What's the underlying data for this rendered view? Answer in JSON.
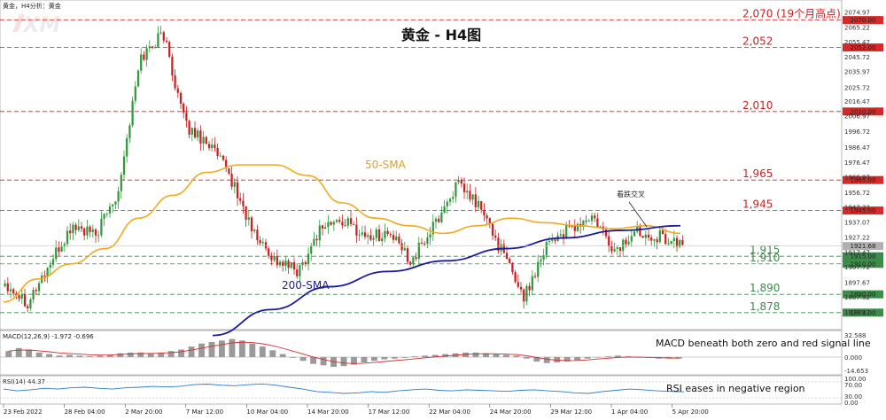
{
  "header": {
    "label": "黄金，H4分析：黄金"
  },
  "logo": {
    "text": "XM"
  },
  "chart_data": {
    "type": "candlestick",
    "title": "黄金 - H4图",
    "ylim": [
      1868,
      2082
    ],
    "x_ticks": [
      "23 Feb 2022",
      "28 Feb 04:00",
      "2 Mar 20:00",
      "7 Mar 12:00",
      "10 Mar 04:00",
      "14 Mar 20:00",
      "17 Mar 12:00",
      "22 Mar 04:00",
      "24 Mar 20:00",
      "29 Mar 12:00",
      "1 Apr 04:00",
      "5 Apr 20:00"
    ],
    "price_ticks": [
      "2074.97",
      "2065.22",
      "2055.47",
      "2045.72",
      "2035.97",
      "2025.72",
      "2016.47",
      "2006.97",
      "1996.72",
      "1986.47",
      "1976.47",
      "1966.97",
      "1956.72",
      "1947.22",
      "1937.07",
      "1927.22",
      "1917.47",
      "1907.72",
      "1897.67",
      "1887.92",
      "1878.17"
    ],
    "levels": [
      {
        "value": 2070,
        "label": "2,070 (19个月高点)",
        "box": "2070.00",
        "style": "red"
      },
      {
        "value": 2052,
        "label": "2,052",
        "box": "2052.00",
        "style": "red"
      },
      {
        "value": 2010,
        "label": "2,010",
        "box": "2010.00",
        "style": "red"
      },
      {
        "value": 1965,
        "label": "1,965",
        "box": "1965.00",
        "style": "red"
      },
      {
        "value": 1945,
        "label": "1,945",
        "box": "1945.00",
        "style": "red"
      },
      {
        "value": 1915,
        "label": "1,915",
        "box": "1915.00",
        "style": "green"
      },
      {
        "value": 1910,
        "label": "1,910",
        "box": "1910.00",
        "style": "green"
      },
      {
        "value": 1890,
        "label": "1,890",
        "box": "1890.00",
        "style": "green"
      },
      {
        "value": 1878,
        "label": "1,878",
        "box": "1878.00",
        "style": "green"
      }
    ],
    "current_price": {
      "value": 1921.7,
      "label": "1921.68"
    },
    "anchors": [
      1898,
      1885,
      1910,
      1935,
      1928,
      1958,
      2045,
      2062,
      2000,
      1990,
      1966,
      1930,
      1912,
      1905,
      1935,
      1938,
      1928,
      1930,
      1912,
      1935,
      1962,
      1948,
      1918,
      1888,
      1925,
      1932,
      1940,
      1918,
      1932,
      1928,
      1922
    ],
    "sma50": [
      1885,
      1900,
      1910,
      1920,
      1940,
      1955,
      1970,
      1975,
      1975,
      1968,
      1950,
      1940,
      1935,
      1930,
      1935,
      1940,
      1937,
      1935,
      1933,
      1935,
      1930
    ],
    "sma200": [
      1863,
      1880,
      1895,
      1905,
      1912,
      1920,
      1927,
      1932,
      1935
    ],
    "series_labels": {
      "sma50": "50-SMA",
      "sma200": "200-SMA"
    },
    "annotation": {
      "text": "看跌交叉"
    },
    "macd": {
      "label": "MACD(12,26,9) -1.972 -0.696",
      "note": "MACD beneath both zero and red signal line",
      "ticks": [
        "32.588",
        "0.000",
        "-14.653"
      ],
      "hist": [
        8,
        12,
        10,
        6,
        4,
        2,
        3,
        2,
        1,
        2,
        3,
        5,
        6,
        6,
        5,
        6,
        8,
        10,
        14,
        18,
        20,
        22,
        24,
        22,
        18,
        14,
        9,
        4,
        -1,
        -5,
        -9,
        -11,
        -13,
        -12,
        -10,
        -7,
        -5,
        -3,
        -2,
        -1,
        1,
        2,
        3,
        4,
        5,
        6,
        6,
        5,
        4,
        3,
        2,
        -2,
        -6,
        -8,
        -7,
        -6,
        -4,
        -2,
        0,
        1,
        2,
        1,
        0,
        -1,
        -2,
        -2,
        -2
      ]
    },
    "rsi": {
      "label": "RSI(14) 44.37",
      "note": "RSI eases in negative region",
      "ticks": [
        "100.00",
        "70.00",
        "30.00",
        "0.00"
      ],
      "values": [
        55,
        48,
        52,
        58,
        55,
        60,
        62,
        58,
        55,
        60,
        62,
        65,
        63,
        66,
        72,
        74,
        70,
        68,
        72,
        75,
        70,
        62,
        55,
        45,
        42,
        38,
        40,
        45,
        42,
        48,
        52,
        55,
        50,
        48,
        52,
        50,
        48,
        46,
        50,
        52,
        48,
        45,
        40,
        38,
        45,
        50,
        55,
        52,
        48,
        46,
        44
      ]
    }
  }
}
